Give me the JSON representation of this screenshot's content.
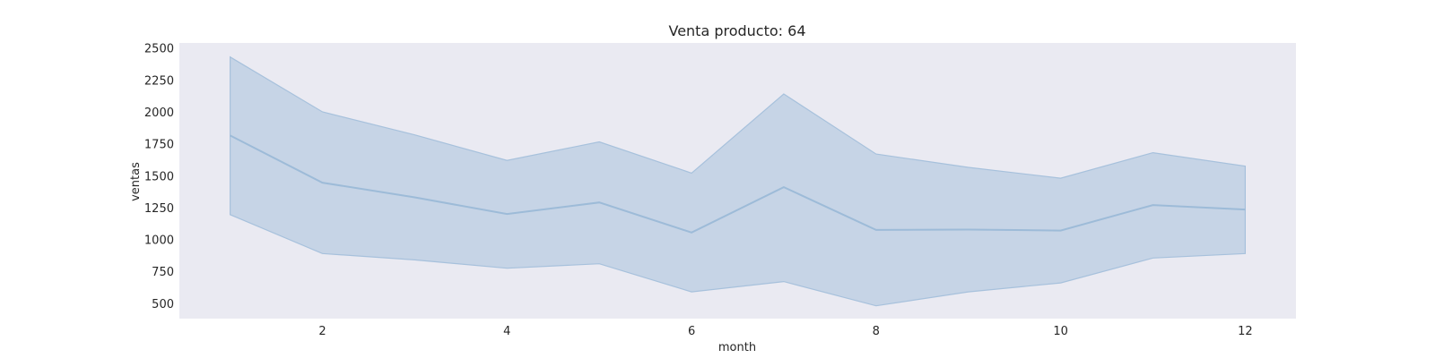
{
  "chart_data": {
    "type": "line",
    "title": "Venta producto: 64",
    "xlabel": "month",
    "ylabel": "ventas",
    "xlim": [
      0.45,
      12.55
    ],
    "ylim": [
      380,
      2540
    ],
    "xticks": [
      2,
      4,
      6,
      8,
      10,
      12
    ],
    "yticks": [
      500,
      750,
      1000,
      1250,
      1500,
      1750,
      2000,
      2250,
      2500
    ],
    "grid": false,
    "x": [
      1,
      2,
      3,
      4,
      5,
      6,
      7,
      8,
      9,
      10,
      11,
      12
    ],
    "series": [
      {
        "values": [
          1815,
          1445,
          1330,
          1200,
          1290,
          1055,
          1410,
          1075,
          1078,
          1070,
          1270,
          1235
        ],
        "lower": [
          1195,
          890,
          840,
          775,
          810,
          590,
          670,
          480,
          590,
          660,
          855,
          890
        ],
        "upper": [
          2430,
          2000,
          1820,
          1620,
          1765,
          1520,
          2140,
          1670,
          1565,
          1480,
          1680,
          1575
        ]
      }
    ],
    "colors": {
      "plot_background": "#eaeaf2",
      "band_fill": "#a7c1dc",
      "line": "#9dbbd8"
    }
  }
}
